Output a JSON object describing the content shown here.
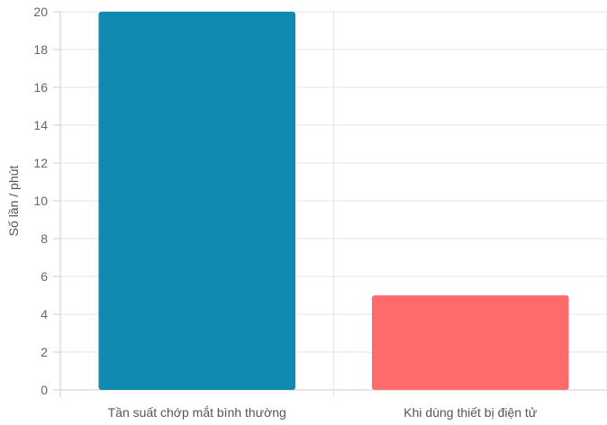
{
  "chart_data": {
    "type": "bar",
    "title": "",
    "xlabel": "",
    "ylabel": "Số lần / phút",
    "ylim": [
      0,
      20
    ],
    "ytick_step": 2,
    "grid": true,
    "legend": "none",
    "categories": [
      "Tần suất chớp mắt bình thường",
      "Khi dùng thiết bị điện tử"
    ],
    "values": [
      20,
      5
    ],
    "colors": [
      "#118ab2",
      "#ff6b6b"
    ]
  }
}
